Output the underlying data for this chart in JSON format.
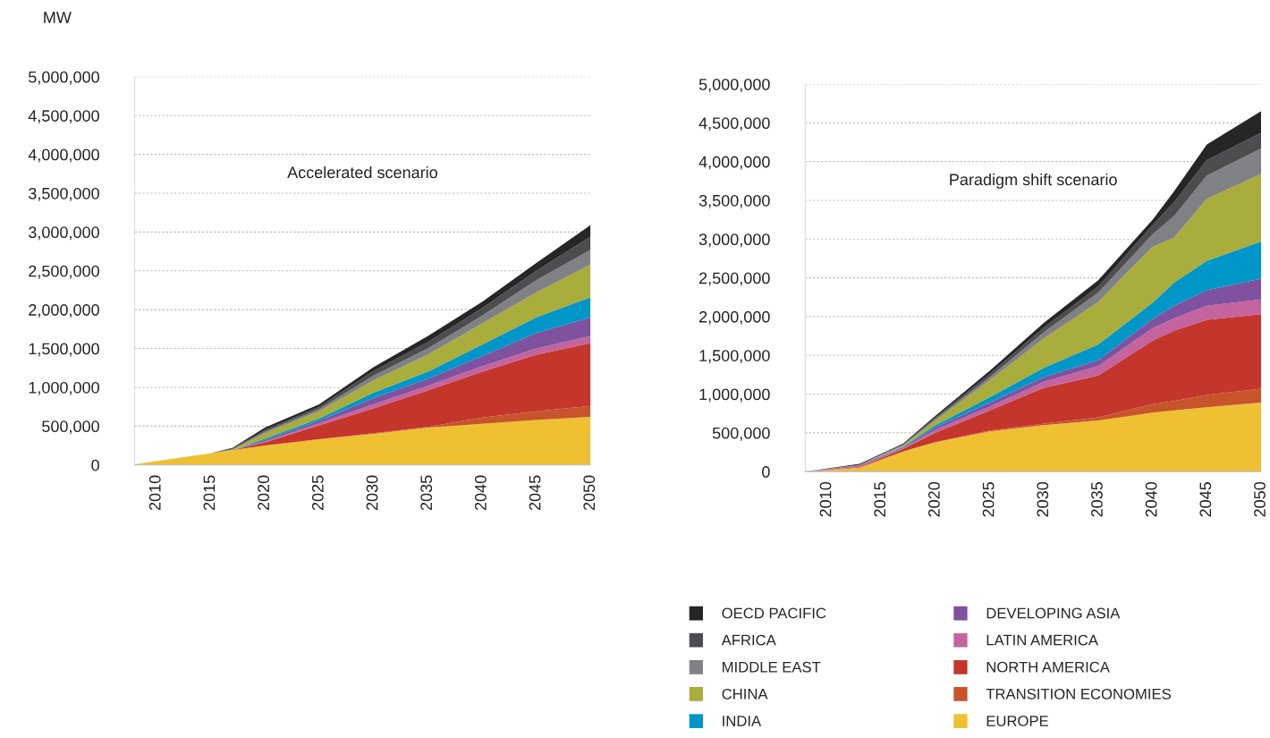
{
  "chart_data": [
    {
      "type": "area",
      "stacked": true,
      "title": "Accelerated scenario",
      "ylabel": "MW",
      "x": [
        2008,
        2015,
        2017,
        2020,
        2025,
        2030,
        2035,
        2040,
        2045,
        2050
      ],
      "xlim": [
        2008,
        2050
      ],
      "xticks": [
        2010,
        2015,
        2020,
        2025,
        2030,
        2035,
        2040,
        2045,
        2050
      ],
      "ylim": [
        0,
        5000000
      ],
      "yticks": [
        {
          "value": 0,
          "label": "0"
        },
        {
          "value": 500000,
          "label": "500,000"
        },
        {
          "value": 1000000,
          "label": "1,000,000"
        },
        {
          "value": 1500000,
          "label": "1,500,000"
        },
        {
          "value": 2000000,
          "label": "2,000,000"
        },
        {
          "value": 2500000,
          "label": "2,500,000"
        },
        {
          "value": 3000000,
          "label": "3,000,000"
        },
        {
          "value": 3500000,
          "label": "3,500,000"
        },
        {
          "value": 4000000,
          "label": "4,000,000"
        },
        {
          "value": 4500000,
          "label": "4,500,000"
        },
        {
          "value": 5000000,
          "label": "5,000,000"
        }
      ],
      "grid": "y",
      "legend": "bottom right",
      "series": [
        {
          "name": "EUROPE",
          "color": "#eec032",
          "values": [
            10000,
            150000,
            190000,
            250000,
            330000,
            400000,
            480000,
            530000,
            580000,
            620000
          ]
        },
        {
          "name": "TRANSITION ECONOMIES",
          "color": "#c8542b",
          "values": [
            0,
            0,
            0,
            0,
            0,
            10000,
            10000,
            80000,
            110000,
            140000
          ]
        },
        {
          "name": "NORTH AMERICA",
          "color": "#c4352b",
          "values": [
            0,
            0,
            0,
            40000,
            180000,
            320000,
            470000,
            590000,
            730000,
            810000
          ]
        },
        {
          "name": "LATIN AMERICA",
          "color": "#c4639e",
          "values": [
            0,
            0,
            0,
            10000,
            30000,
            50000,
            60000,
            70000,
            80000,
            90000
          ]
        },
        {
          "name": "DEVELOPING ASIA",
          "color": "#7e529e",
          "values": [
            0,
            0,
            0,
            20000,
            30000,
            80000,
            90000,
            130000,
            200000,
            240000
          ]
        },
        {
          "name": "INDIA",
          "color": "#0096c8",
          "values": [
            0,
            0,
            0,
            20000,
            30000,
            70000,
            90000,
            150000,
            200000,
            260000
          ]
        },
        {
          "name": "CHINA",
          "color": "#a8ad3b",
          "values": [
            0,
            0,
            10000,
            70000,
            90000,
            160000,
            220000,
            270000,
            320000,
            420000
          ]
        },
        {
          "name": "MIDDLE EAST",
          "color": "#808184",
          "values": [
            0,
            0,
            0,
            20000,
            30000,
            60000,
            80000,
            100000,
            160000,
            190000
          ]
        },
        {
          "name": "AFRICA",
          "color": "#4d4d4f",
          "values": [
            0,
            0,
            10000,
            20000,
            30000,
            60000,
            80000,
            100000,
            120000,
            170000
          ]
        },
        {
          "name": "OECD PACIFIC",
          "color": "#262626",
          "values": [
            0,
            0,
            10000,
            30000,
            30000,
            50000,
            80000,
            80000,
            100000,
            150000
          ]
        }
      ]
    },
    {
      "type": "area",
      "stacked": true,
      "title": "Paradigm shift scenario",
      "x": [
        2008,
        2013,
        2017,
        2020,
        2025,
        2030,
        2035,
        2040,
        2042,
        2045,
        2050
      ],
      "xlim": [
        2008,
        2050
      ],
      "xticks": [
        2010,
        2015,
        2020,
        2025,
        2030,
        2035,
        2040,
        2045,
        2050
      ],
      "ylim": [
        0,
        5000000
      ],
      "yticks": [
        {
          "value": 0,
          "label": "0"
        },
        {
          "value": 500000,
          "label": "500,000"
        },
        {
          "value": 1000000,
          "label": "1,000,000"
        },
        {
          "value": 1500000,
          "label": "1,500,000"
        },
        {
          "value": 2000000,
          "label": "2,000,000"
        },
        {
          "value": 2500000,
          "label": "2,500,000"
        },
        {
          "value": 3000000,
          "label": "3,000,000"
        },
        {
          "value": 3500000,
          "label": "3,500,000"
        },
        {
          "value": 4000000,
          "label": "4,000,000"
        },
        {
          "value": 4500000,
          "label": "4,500,000"
        },
        {
          "value": 5000000,
          "label": "5,000,000"
        }
      ],
      "grid": "y",
      "series": [
        {
          "color": "#eec032",
          "values": [
            0,
            50000,
            260000,
            380000,
            520000,
            600000,
            660000,
            760000,
            790000,
            830000,
            890000
          ]
        },
        {
          "color": "#c8542b",
          "values": [
            0,
            0,
            0,
            0,
            10000,
            20000,
            40000,
            110000,
            120000,
            160000,
            180000
          ]
        },
        {
          "color": "#c4352b",
          "values": [
            0,
            10000,
            30000,
            120000,
            260000,
            460000,
            540000,
            820000,
            910000,
            970000,
            960000
          ]
        },
        {
          "color": "#c4639e",
          "values": [
            0,
            20000,
            10000,
            40000,
            50000,
            80000,
            120000,
            160000,
            160000,
            180000,
            190000
          ]
        },
        {
          "color": "#7e529e",
          "values": [
            0,
            10000,
            10000,
            30000,
            50000,
            60000,
            80000,
            120000,
            160000,
            200000,
            270000
          ]
        },
        {
          "color": "#0096c8",
          "values": [
            0,
            0,
            10000,
            30000,
            70000,
            120000,
            200000,
            210000,
            300000,
            380000,
            480000
          ]
        },
        {
          "color": "#a8ad3b",
          "values": [
            0,
            0,
            10000,
            60000,
            220000,
            380000,
            550000,
            720000,
            580000,
            800000,
            870000
          ]
        },
        {
          "color": "#808184",
          "values": [
            0,
            0,
            10000,
            20000,
            40000,
            80000,
            120000,
            160000,
            280000,
            300000,
            330000
          ]
        },
        {
          "color": "#4d4d4f",
          "values": [
            0,
            0,
            10000,
            20000,
            40000,
            60000,
            80000,
            120000,
            180000,
            200000,
            200000
          ]
        },
        {
          "color": "#262626",
          "values": [
            0,
            10000,
            10000,
            20000,
            40000,
            60000,
            80000,
            70000,
            140000,
            200000,
            280000
          ]
        }
      ]
    }
  ]
}
